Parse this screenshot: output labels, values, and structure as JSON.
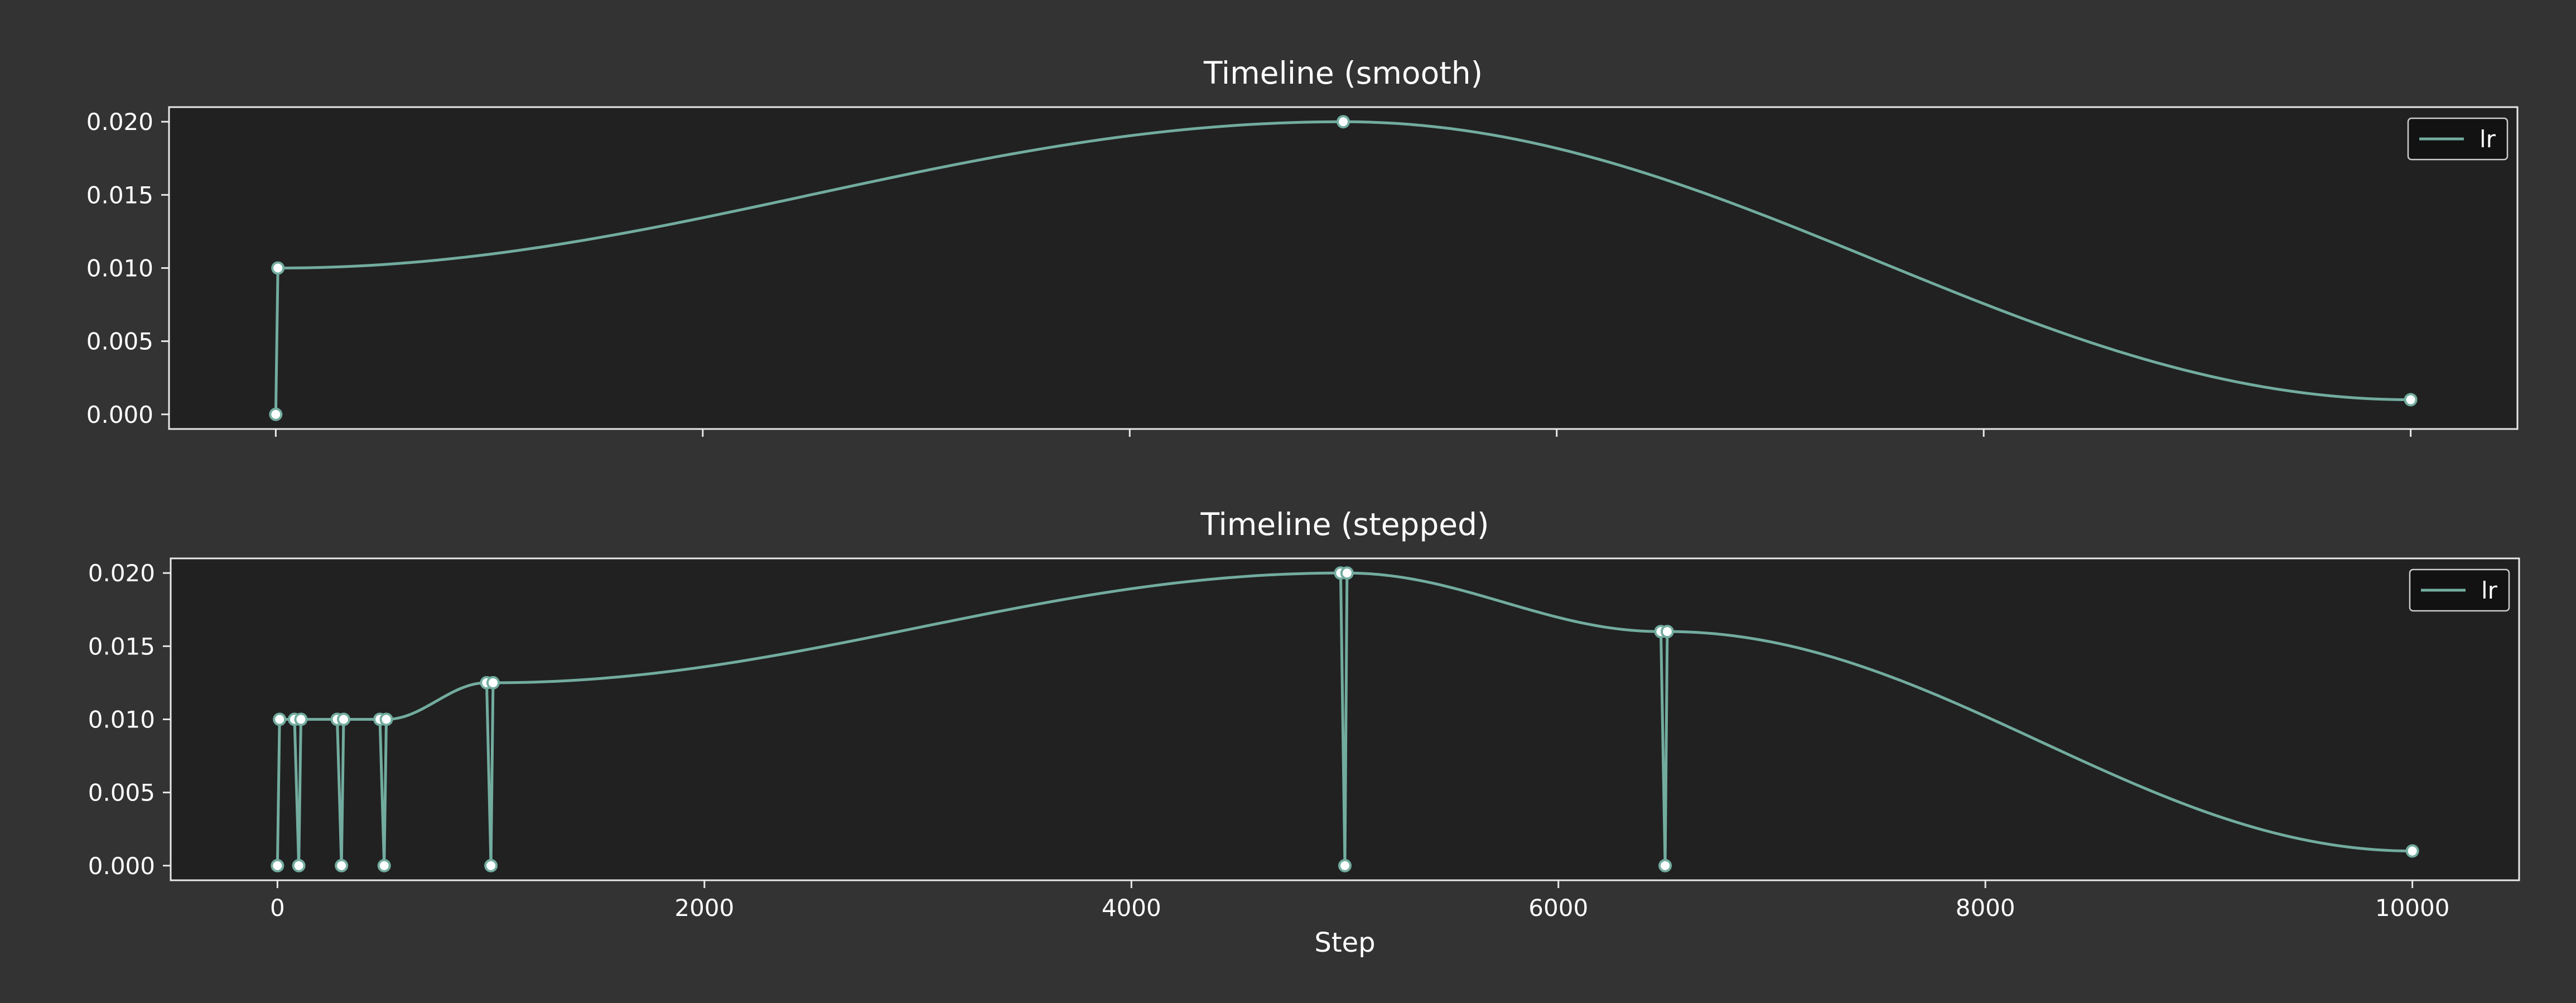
{
  "colors": {
    "figure_bg": "#333333",
    "axes_bg": "#212121",
    "spine": "#e8e8e8",
    "text": "#ffffff",
    "line": "#72ac9f",
    "marker_face": "#ffffff",
    "legend_bg": "#111111"
  },
  "chart_data": [
    {
      "type": "line",
      "title": "Timeline (smooth)",
      "xlabel": "",
      "ylabel": "",
      "xlim": [
        -500,
        10500
      ],
      "ylim": [
        -0.001,
        0.021
      ],
      "xticks": [
        0,
        2000,
        4000,
        6000,
        8000,
        10000
      ],
      "xtick_labels_visible": false,
      "yticks": [
        0.0,
        0.005,
        0.01,
        0.015,
        0.02
      ],
      "ytick_labels": [
        "0.000",
        "0.005",
        "0.010",
        "0.015",
        "0.020"
      ],
      "grid": false,
      "legend": {
        "placement": "top-right",
        "entries": [
          "lr"
        ]
      },
      "series": [
        {
          "name": "lr",
          "line": [
            {
              "x": 0,
              "y": 0.0,
              "interp": "linear"
            },
            {
              "x": 10,
              "y": 0.01,
              "interp": "cosine"
            },
            {
              "x": 5000,
              "y": 0.02,
              "interp": "cosine"
            },
            {
              "x": 10000,
              "y": 0.001
            }
          ],
          "markers": [
            [
              0,
              0.0
            ],
            [
              10,
              0.01
            ],
            [
              5000,
              0.02
            ],
            [
              10000,
              0.001
            ]
          ]
        }
      ]
    },
    {
      "type": "line",
      "title": "Timeline (stepped)",
      "xlabel": "Step",
      "ylabel": "",
      "xlim": [
        -500,
        10500
      ],
      "ylim": [
        -0.001,
        0.021
      ],
      "xticks": [
        0,
        2000,
        4000,
        6000,
        8000,
        10000
      ],
      "xtick_labels": [
        "0",
        "2000",
        "4000",
        "6000",
        "8000",
        "10000"
      ],
      "yticks": [
        0.0,
        0.005,
        0.01,
        0.015,
        0.02
      ],
      "ytick_labels": [
        "0.000",
        "0.005",
        "0.010",
        "0.015",
        "0.020"
      ],
      "grid": false,
      "legend": {
        "placement": "top-right",
        "entries": [
          "lr"
        ]
      },
      "series": [
        {
          "name": "lr",
          "line": [
            {
              "x": 0,
              "y": 0.0,
              "interp": "linear"
            },
            {
              "x": 10,
              "y": 0.01,
              "interp": "cosine"
            },
            {
              "x": 80,
              "y": 0.01,
              "interp": "linear"
            },
            {
              "x": 100,
              "y": 0.0,
              "interp": "linear"
            },
            {
              "x": 110,
              "y": 0.01,
              "interp": "cosine"
            },
            {
              "x": 280,
              "y": 0.01,
              "interp": "linear"
            },
            {
              "x": 300,
              "y": 0.0,
              "interp": "linear"
            },
            {
              "x": 310,
              "y": 0.01,
              "interp": "cosine"
            },
            {
              "x": 480,
              "y": 0.01,
              "interp": "linear"
            },
            {
              "x": 500,
              "y": 0.0,
              "interp": "linear"
            },
            {
              "x": 510,
              "y": 0.01,
              "interp": "cosine"
            },
            {
              "x": 980,
              "y": 0.0125,
              "interp": "linear"
            },
            {
              "x": 1000,
              "y": 0.0,
              "interp": "linear"
            },
            {
              "x": 1010,
              "y": 0.0125,
              "interp": "cosine"
            },
            {
              "x": 4980,
              "y": 0.02,
              "interp": "linear"
            },
            {
              "x": 5000,
              "y": 0.0,
              "interp": "linear"
            },
            {
              "x": 5010,
              "y": 0.02,
              "interp": "cosine"
            },
            {
              "x": 6480,
              "y": 0.016,
              "interp": "linear"
            },
            {
              "x": 6500,
              "y": 0.0,
              "interp": "linear"
            },
            {
              "x": 6510,
              "y": 0.016,
              "interp": "cosine"
            },
            {
              "x": 10000,
              "y": 0.001
            }
          ],
          "markers": [
            [
              10,
              0.01
            ],
            [
              80,
              0.01
            ],
            [
              110,
              0.01
            ],
            [
              280,
              0.01
            ],
            [
              310,
              0.01
            ],
            [
              480,
              0.01
            ],
            [
              510,
              0.01
            ],
            [
              980,
              0.0125
            ],
            [
              1010,
              0.0125
            ],
            [
              4980,
              0.02
            ],
            [
              5010,
              0.02
            ],
            [
              6480,
              0.016
            ],
            [
              6510,
              0.016
            ],
            [
              10000,
              0.001
            ],
            [
              0,
              0.0
            ],
            [
              100,
              0.0
            ],
            [
              300,
              0.0
            ],
            [
              500,
              0.0
            ],
            [
              1000,
              0.0
            ],
            [
              5000,
              0.0
            ],
            [
              6500,
              0.0
            ]
          ]
        }
      ]
    }
  ]
}
